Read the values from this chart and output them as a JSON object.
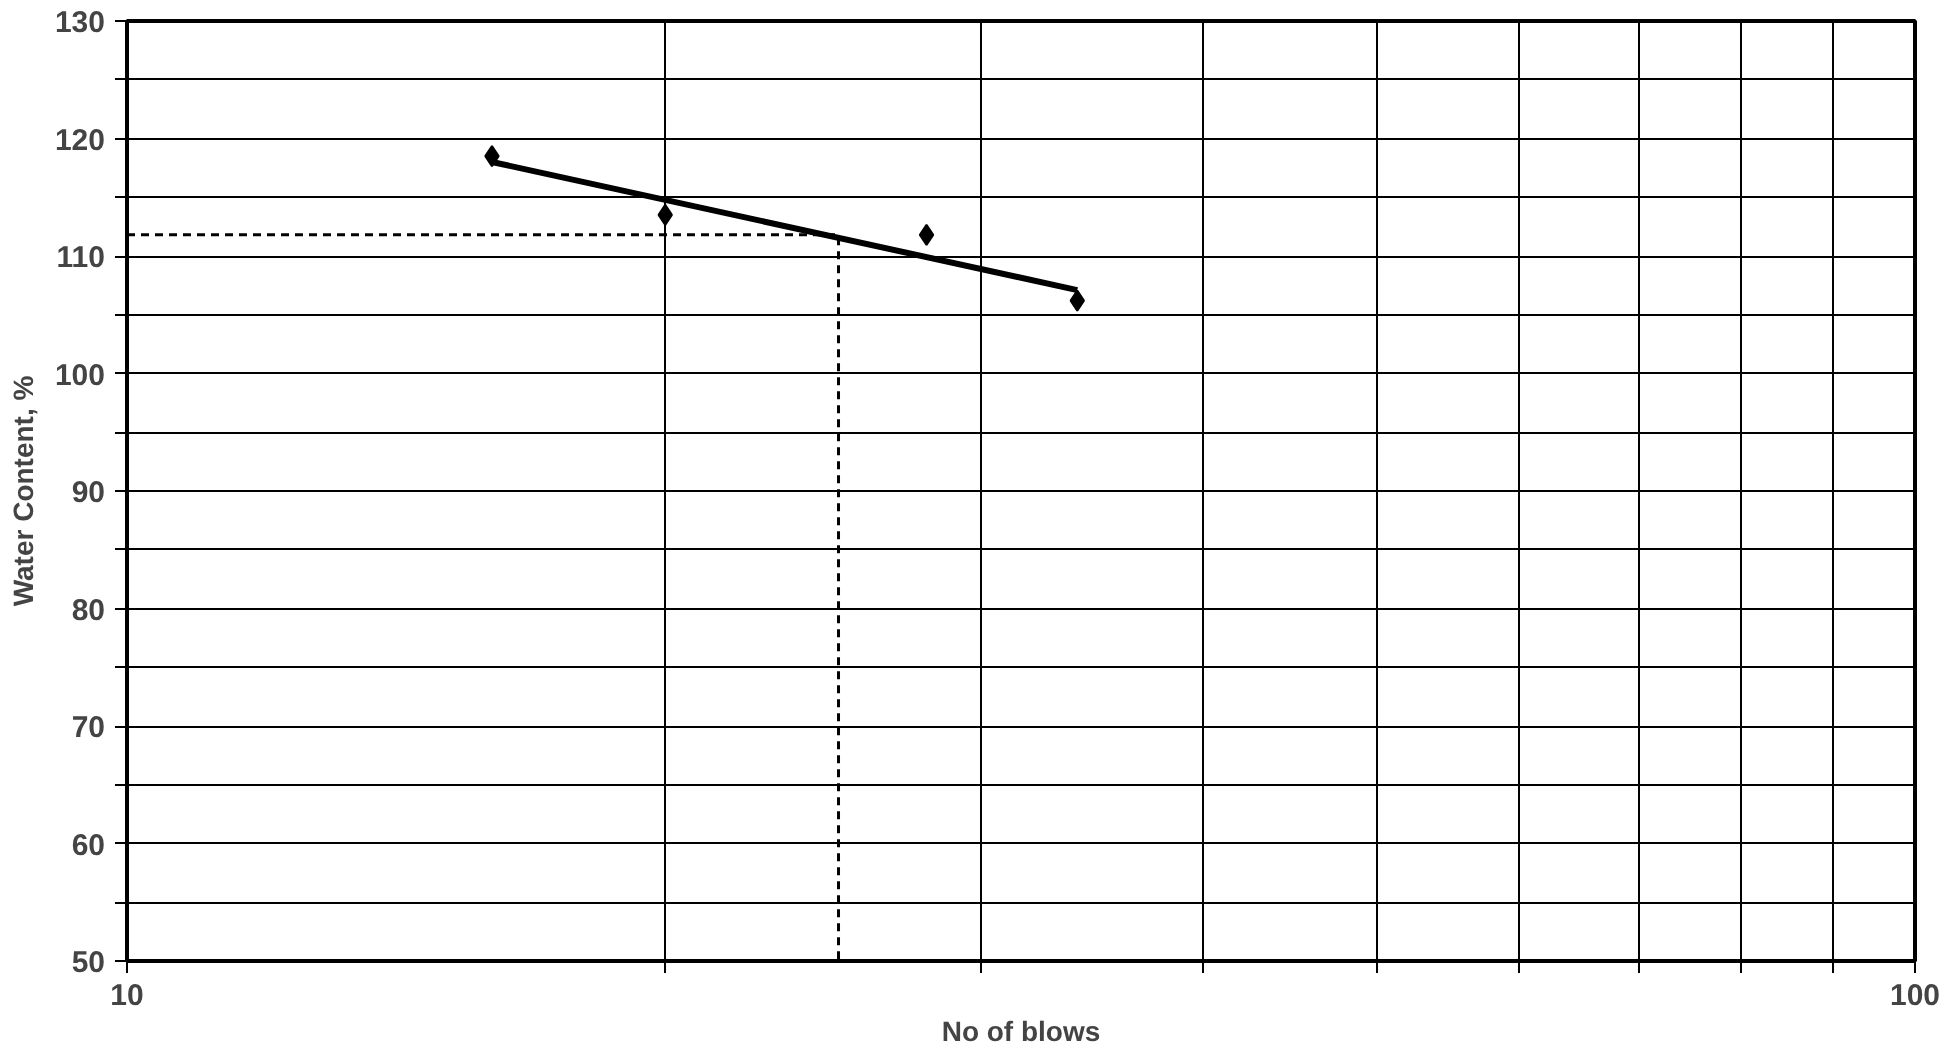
{
  "chart_data": {
    "type": "scatter",
    "xlabel": "No of blows",
    "ylabel": "Water Content, %",
    "log": "x",
    "xlim": [
      10,
      100
    ],
    "ylim": [
      50,
      130
    ],
    "xticks": [
      10,
      {
        "value": 20,
        "label": null
      },
      {
        "value": 30,
        "label": null
      },
      {
        "value": 40,
        "label": null
      },
      {
        "value": 50,
        "label": null
      },
      {
        "value": 60,
        "label": null
      },
      {
        "value": 70,
        "label": null
      },
      {
        "value": 80,
        "label": null
      },
      {
        "value": 90,
        "label": null
      },
      100
    ],
    "yticks": [
      50,
      {
        "value": 55,
        "label": null
      },
      60,
      {
        "value": 65,
        "label": null
      },
      70,
      {
        "value": 75,
        "label": null
      },
      80,
      {
        "value": 85,
        "label": null
      },
      90,
      {
        "value": 95,
        "label": null
      },
      100,
      {
        "value": 105,
        "label": null
      },
      110,
      {
        "value": 115,
        "label": null
      },
      120,
      {
        "value": 125,
        "label": null
      },
      130
    ],
    "grid": true,
    "series": [
      {
        "marker": "diamond",
        "color": "#000000",
        "x": [
          16,
          20,
          28,
          34
        ],
        "values": [
          118.5,
          113.5,
          111.8,
          106.2
        ]
      },
      {
        "type": "line",
        "line_style": "solid",
        "color": "#000000",
        "x": [
          16,
          34
        ],
        "values": [
          118.0,
          107.1
        ]
      },
      {
        "type": "line",
        "line_style": "dashed",
        "color": "#000000",
        "x": [
          10,
          25,
          25
        ],
        "values": [
          111.8,
          111.8,
          50
        ]
      }
    ]
  }
}
